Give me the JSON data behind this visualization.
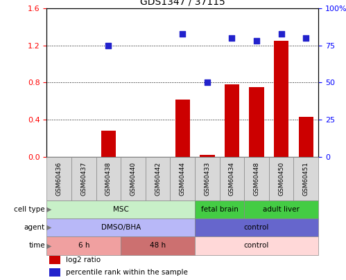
{
  "title": "GDS1347 / 37115",
  "samples": [
    "GSM60436",
    "GSM60437",
    "GSM60438",
    "GSM60440",
    "GSM60442",
    "GSM60444",
    "GSM60433",
    "GSM60434",
    "GSM60448",
    "GSM60450",
    "GSM60451"
  ],
  "log2_ratio": [
    0.0,
    0.0,
    0.28,
    0.0,
    0.0,
    0.62,
    0.02,
    0.78,
    0.75,
    1.25,
    0.43
  ],
  "percentile_rank": [
    null,
    null,
    75,
    null,
    null,
    83,
    50,
    80,
    78,
    83,
    80
  ],
  "ylim_left": [
    0,
    1.6
  ],
  "ylim_right": [
    0,
    100
  ],
  "yticks_left": [
    0,
    0.4,
    0.8,
    1.2,
    1.6
  ],
  "yticks_right": [
    0,
    25,
    50,
    75,
    100
  ],
  "ytick_labels_right": [
    "0",
    "25",
    "50",
    "75",
    "100%"
  ],
  "bar_color": "#cc0000",
  "scatter_color": "#2222cc",
  "cell_type_groups": [
    {
      "label": "MSC",
      "start": 0,
      "end": 6,
      "color": "#c8f0c8"
    },
    {
      "label": "fetal brain",
      "start": 6,
      "end": 8,
      "color": "#44cc44"
    },
    {
      "label": "adult liver",
      "start": 8,
      "end": 11,
      "color": "#44cc44"
    }
  ],
  "agent_groups": [
    {
      "label": "DMSO/BHA",
      "start": 0,
      "end": 6,
      "color": "#b8b8f8"
    },
    {
      "label": "control",
      "start": 6,
      "end": 11,
      "color": "#6666cc"
    }
  ],
  "time_groups": [
    {
      "label": "6 h",
      "start": 0,
      "end": 3,
      "color": "#f0a0a0"
    },
    {
      "label": "48 h",
      "start": 3,
      "end": 6,
      "color": "#cc7070"
    },
    {
      "label": "control",
      "start": 6,
      "end": 11,
      "color": "#ffd8d8"
    }
  ],
  "row_labels": [
    "cell type",
    "agent",
    "time"
  ],
  "legend_items": [
    {
      "color": "#cc0000",
      "label": "log2 ratio"
    },
    {
      "color": "#2222cc",
      "label": "percentile rank within the sample"
    }
  ],
  "label_box_color": "#d8d8d8",
  "label_box_edge": "#888888"
}
